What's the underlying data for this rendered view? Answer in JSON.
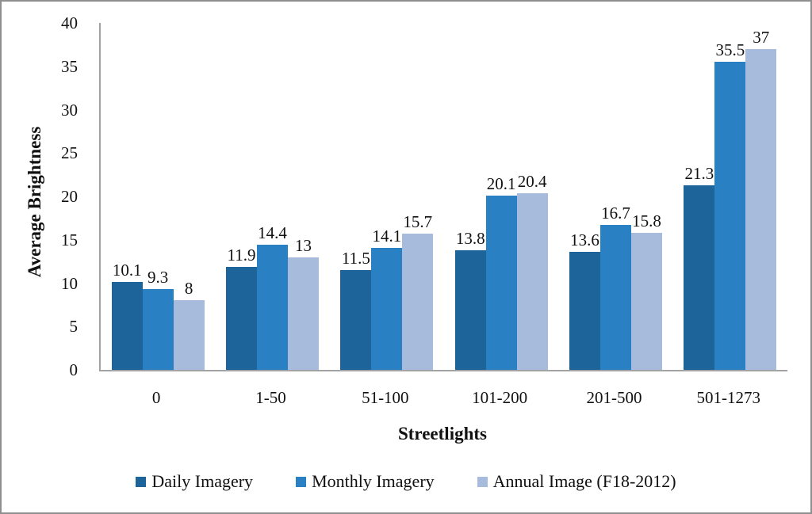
{
  "chart_data": {
    "type": "bar",
    "title": "",
    "xlabel": "Streetlights",
    "ylabel": "Average Brightness",
    "categories": [
      "0",
      "1-50",
      "51-100",
      "101-200",
      "201-500",
      "501-1273"
    ],
    "series": [
      {
        "name": "Daily Imagery",
        "color": "#1C649A",
        "values": [
          10.1,
          11.9,
          11.5,
          13.8,
          13.6,
          21.3
        ]
      },
      {
        "name": "Monthly Imagery",
        "color": "#2980C3",
        "values": [
          9.3,
          14.4,
          14.1,
          20.1,
          16.7,
          35.5
        ]
      },
      {
        "name": "Annual Image (F18-2012)",
        "color": "#A7BBDC",
        "values": [
          8,
          13,
          15.7,
          20.4,
          15.8,
          37
        ]
      }
    ],
    "ylim": [
      0,
      40
    ],
    "ytick_step": 5,
    "yticks": [
      0,
      5,
      10,
      15,
      20,
      25,
      30,
      35,
      40
    ],
    "grid": false,
    "data_labels": true,
    "legend_position": "bottom",
    "axis_line_color": "#a3a3a3",
    "frame_border_color": "#8f8f8f"
  }
}
